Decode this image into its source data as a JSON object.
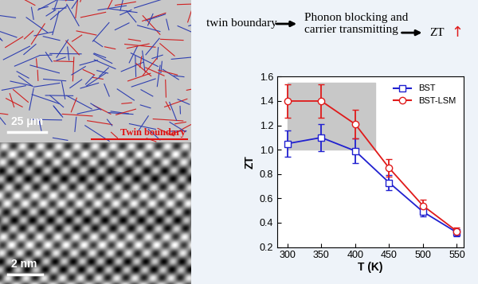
{
  "images": [
    {
      "scale_bar": "25 μm",
      "legend_label": "Twin boundary"
    },
    {
      "scale_bar": "2 nm"
    }
  ],
  "flow": {
    "steps": [
      "twin boundary",
      "Phonon blocking and\ncarrier transmitting",
      "ZT"
    ],
    "trend": "↑"
  },
  "chart_data": {
    "type": "line",
    "x_label": "T (K)",
    "y_label": "ZT",
    "x": [
      300,
      350,
      400,
      450,
      500,
      550
    ],
    "series": [
      {
        "name": "BST",
        "color": "#2020d0",
        "marker": "square",
        "line_style": "solid",
        "values": [
          1.05,
          1.1,
          0.99,
          0.73,
          0.49,
          0.32
        ],
        "errors": [
          0.11,
          0.11,
          0.1,
          0.06,
          0.04,
          0.03
        ]
      },
      {
        "name": "BST-LSM",
        "color": "#e01a1a",
        "marker": "circle",
        "line_style": "solid",
        "values": [
          1.4,
          1.4,
          1.21,
          0.85,
          0.54,
          0.33
        ],
        "errors": [
          0.14,
          0.14,
          0.12,
          0.07,
          0.05,
          0.03
        ]
      }
    ],
    "highlight_x": [
      300,
      430
    ],
    "highlight_y": [
      1.0,
      1.55
    ],
    "xlim": [
      285,
      560
    ],
    "xticks": [
      300,
      350,
      400,
      450,
      500,
      550
    ],
    "ylim": [
      0.2,
      1.6
    ],
    "yticks": [
      0.2,
      0.4,
      0.6,
      0.8,
      1.0,
      1.2,
      1.4,
      1.6
    ],
    "legend": "upper right",
    "grid": false
  }
}
